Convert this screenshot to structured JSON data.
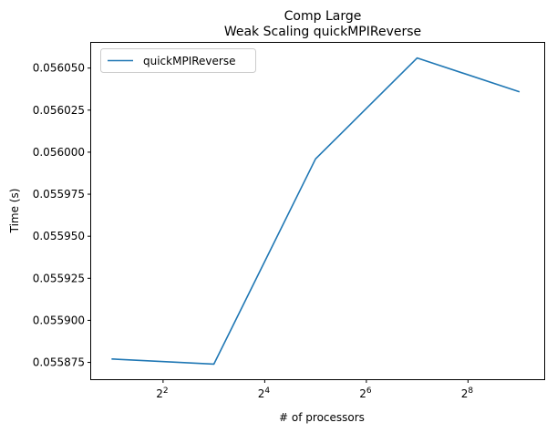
{
  "chart_data": {
    "type": "line",
    "title": "Comp Large",
    "subtitle": "Weak Scaling quickMPIReverse",
    "xlabel": "# of processors",
    "ylabel": "Time (s)",
    "xscale": "log2",
    "x_ticks": [
      {
        "base": "2",
        "exp": "2",
        "value": 4
      },
      {
        "base": "2",
        "exp": "4",
        "value": 16
      },
      {
        "base": "2",
        "exp": "6",
        "value": 64
      },
      {
        "base": "2",
        "exp": "8",
        "value": 256
      }
    ],
    "y_ticks": [
      "0.055875",
      "0.055900",
      "0.055925",
      "0.055950",
      "0.055975",
      "0.056000",
      "0.056025",
      "0.056050"
    ],
    "xlim": [
      1.5,
      724
    ],
    "ylim": [
      0.055865,
      0.056065
    ],
    "grid": false,
    "legend_position": "top-left",
    "series": [
      {
        "name": "quickMPIReverse",
        "color": "#1f77b4",
        "x": [
          2,
          8,
          32,
          128,
          512
        ],
        "y": [
          0.055877,
          0.055874,
          0.055996,
          0.056056,
          0.056036
        ]
      }
    ]
  }
}
